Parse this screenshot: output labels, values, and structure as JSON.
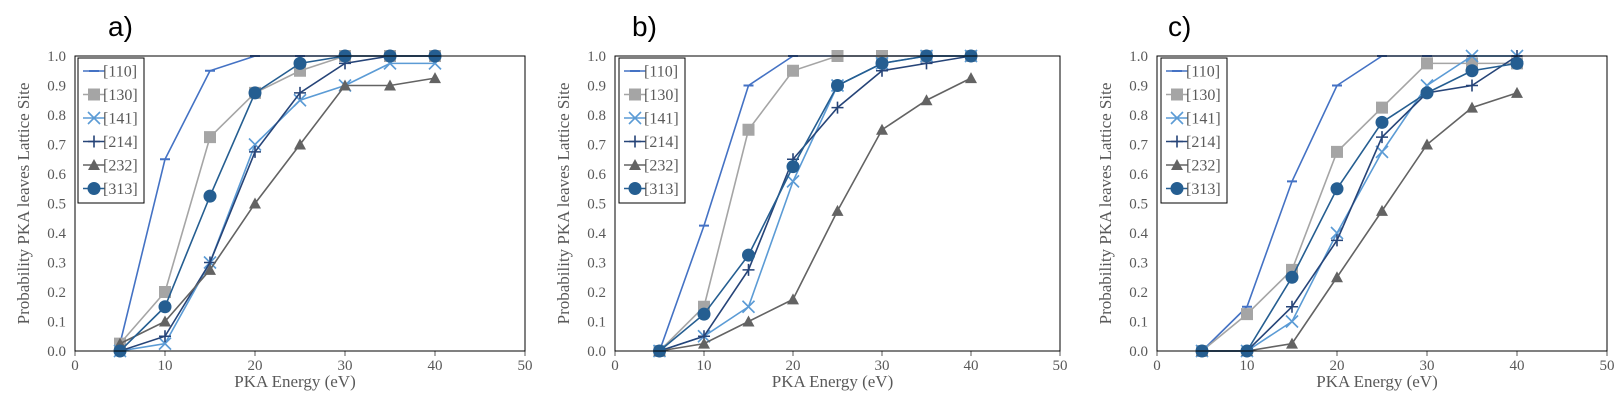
{
  "chart_data": [
    {
      "type": "line",
      "panel_label": "a)",
      "xlabel": "PKA Energy (eV)",
      "ylabel": "Probability PKA leaves Lattice Site",
      "xlim": [
        0,
        50
      ],
      "ylim": [
        0,
        1.0
      ],
      "xticks": [
        "0",
        "10",
        "20",
        "30",
        "40",
        "50"
      ],
      "yticks": [
        "0.0",
        "0.1",
        "0.2",
        "0.3",
        "0.4",
        "0.5",
        "0.6",
        "0.7",
        "0.8",
        "0.9",
        "1.0"
      ],
      "grid": false,
      "legend": "top-left",
      "x": [
        5,
        10,
        15,
        20,
        25,
        30,
        35,
        40
      ],
      "series": [
        {
          "name": "[110]",
          "values": [
            0.025,
            0.65,
            0.95,
            1.0,
            1.0,
            1.0,
            1.0,
            1.0
          ]
        },
        {
          "name": "[130]",
          "values": [
            0.025,
            0.2,
            0.725,
            0.875,
            0.95,
            1.0,
            1.0,
            1.0
          ]
        },
        {
          "name": "[141]",
          "values": [
            0.0,
            0.025,
            0.3,
            0.7,
            0.85,
            0.9,
            0.975,
            0.975
          ]
        },
        {
          "name": "[214]",
          "values": [
            0.0,
            0.05,
            0.3,
            0.675,
            0.875,
            0.975,
            1.0,
            1.0
          ]
        },
        {
          "name": "[232]",
          "values": [
            0.025,
            0.1,
            0.275,
            0.5,
            0.7,
            0.9,
            0.9,
            0.925
          ]
        },
        {
          "name": "[313]",
          "values": [
            0.0,
            0.15,
            0.525,
            0.875,
            0.975,
            1.0,
            1.0,
            1.0
          ]
        }
      ]
    },
    {
      "type": "line",
      "panel_label": "b)",
      "xlabel": "PKA Energy (eV)",
      "ylabel": "Probability PKA leaves Lattice Site",
      "xlim": [
        0,
        50
      ],
      "ylim": [
        0,
        1.0
      ],
      "xticks": [
        "0",
        "10",
        "20",
        "30",
        "40",
        "50"
      ],
      "yticks": [
        "0.0",
        "0.1",
        "0.2",
        "0.3",
        "0.4",
        "0.5",
        "0.6",
        "0.7",
        "0.8",
        "0.9",
        "1.0"
      ],
      "grid": false,
      "legend": "top-left",
      "x": [
        5,
        10,
        15,
        20,
        25,
        30,
        35,
        40
      ],
      "series": [
        {
          "name": "[110]",
          "values": [
            0.0,
            0.425,
            0.9,
            1.0,
            1.0,
            1.0,
            1.0,
            1.0
          ]
        },
        {
          "name": "[130]",
          "values": [
            0.0,
            0.15,
            0.75,
            0.95,
            1.0,
            1.0,
            1.0,
            1.0
          ]
        },
        {
          "name": "[141]",
          "values": [
            0.0,
            0.05,
            0.15,
            0.575,
            0.9,
            0.975,
            1.0,
            1.0
          ]
        },
        {
          "name": "[214]",
          "values": [
            0.0,
            0.05,
            0.275,
            0.65,
            0.825,
            0.95,
            0.975,
            1.0
          ]
        },
        {
          "name": "[232]",
          "values": [
            0.0,
            0.025,
            0.1,
            0.175,
            0.475,
            0.75,
            0.85,
            0.925
          ]
        },
        {
          "name": "[313]",
          "values": [
            0.0,
            0.125,
            0.325,
            0.625,
            0.9,
            0.975,
            1.0,
            1.0
          ]
        }
      ]
    },
    {
      "type": "line",
      "panel_label": "c)",
      "xlabel": "PKA Energy (eV)",
      "ylabel": "Probability PKA leaves Lattice Site",
      "xlim": [
        0,
        50
      ],
      "ylim": [
        0,
        1.0
      ],
      "xticks": [
        "0",
        "10",
        "20",
        "30",
        "40",
        "50"
      ],
      "yticks": [
        "0.0",
        "0.1",
        "0.2",
        "0.3",
        "0.4",
        "0.5",
        "0.6",
        "0.7",
        "0.8",
        "0.9",
        "1.0"
      ],
      "grid": false,
      "legend": "top-left",
      "x": [
        5,
        10,
        15,
        20,
        25,
        30,
        35,
        40
      ],
      "series": [
        {
          "name": "[110]",
          "values": [
            0.0,
            0.15,
            0.575,
            0.9,
            1.0,
            1.0,
            1.0,
            1.0
          ]
        },
        {
          "name": "[130]",
          "values": [
            0.0,
            0.125,
            0.275,
            0.675,
            0.825,
            0.975,
            0.975,
            0.975
          ]
        },
        {
          "name": "[141]",
          "values": [
            0.0,
            0.0,
            0.1,
            0.4,
            0.675,
            0.9,
            1.0,
            1.0
          ]
        },
        {
          "name": "[214]",
          "values": [
            0.0,
            0.0,
            0.15,
            0.375,
            0.725,
            0.875,
            0.9,
            1.0
          ]
        },
        {
          "name": "[232]",
          "values": [
            0.0,
            0.0,
            0.025,
            0.25,
            0.475,
            0.7,
            0.825,
            0.875
          ]
        },
        {
          "name": "[313]",
          "values": [
            0.0,
            0.0,
            0.25,
            0.55,
            0.775,
            0.875,
            0.95,
            0.975
          ]
        }
      ]
    }
  ],
  "series_styles": [
    {
      "name": "[110]",
      "color": "#4472C4",
      "marker": "dash"
    },
    {
      "name": "[130]",
      "color": "#A5A5A5",
      "marker": "square"
    },
    {
      "name": "[141]",
      "color": "#5B9BD5",
      "marker": "x"
    },
    {
      "name": "[214]",
      "color": "#264478",
      "marker": "plus"
    },
    {
      "name": "[232]",
      "color": "#636363",
      "marker": "triangle"
    },
    {
      "name": "[313]",
      "color": "#255E91",
      "marker": "circle"
    }
  ],
  "axis_color": "#595959",
  "frame_color": "#000000"
}
